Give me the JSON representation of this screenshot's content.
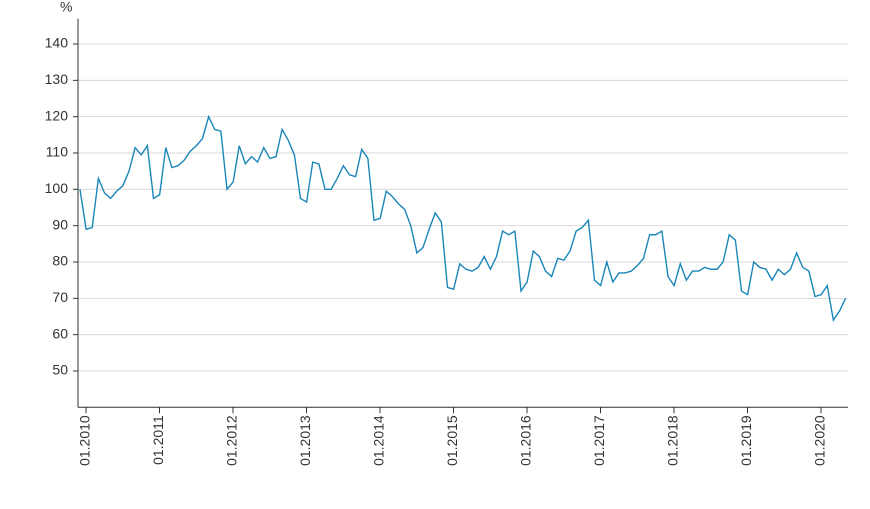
{
  "chart_data": {
    "type": "line",
    "y_label": "%",
    "categories": [
      "01.2010",
      null,
      null,
      null,
      null,
      null,
      null,
      null,
      null,
      null,
      null,
      null,
      "01.2011",
      null,
      null,
      null,
      null,
      null,
      null,
      null,
      null,
      null,
      null,
      null,
      "01.2012",
      null,
      null,
      null,
      null,
      null,
      null,
      null,
      null,
      null,
      null,
      null,
      "01.2013",
      null,
      null,
      null,
      null,
      null,
      null,
      null,
      null,
      null,
      null,
      null,
      "01.2014",
      null,
      null,
      null,
      null,
      null,
      null,
      null,
      null,
      null,
      null,
      null,
      "01.2015",
      null,
      null,
      null,
      null,
      null,
      null,
      null,
      null,
      null,
      null,
      null,
      "01.2016",
      null,
      null,
      null,
      null,
      null,
      null,
      null,
      null,
      null,
      null,
      null,
      "01.2017",
      null,
      null,
      null,
      null,
      null,
      null,
      null,
      null,
      null,
      null,
      null,
      "01.2018",
      null,
      null,
      null,
      null,
      null,
      null,
      null,
      null,
      null,
      null,
      null,
      "01.2019",
      null,
      null,
      null,
      null,
      null,
      null,
      null,
      null,
      null,
      null,
      null,
      "01.2020",
      null,
      null,
      null,
      null,
      null
    ],
    "series": [
      {
        "color": "#1a86b8",
        "values": [
          100,
          89,
          89.5,
          103,
          99,
          97.5,
          99.5,
          101,
          105,
          111.5,
          109.5,
          112,
          97.5,
          98.5,
          111.5,
          106,
          106.5,
          108,
          110.5,
          112,
          114,
          120,
          116.5,
          116,
          100,
          102,
          112,
          107,
          109,
          107.5,
          111.5,
          108.5,
          109,
          116.5,
          113.5,
          109.5,
          97.5,
          96.5,
          107.5,
          107,
          100,
          100,
          103,
          106.5,
          104,
          103.5,
          111,
          108.5,
          91.5,
          92,
          99.5,
          98,
          96,
          94.5,
          90,
          82.5,
          84,
          89,
          93.5,
          91,
          73,
          72.5,
          79.5,
          78,
          77.5,
          78.5,
          81.5,
          78,
          81.5,
          88.5,
          87.5,
          88.5,
          72,
          74.5,
          83,
          81.5,
          77.5,
          76,
          81,
          80.5,
          83,
          88.5,
          89.5,
          91.5,
          75,
          73.5,
          80,
          74.5,
          77,
          77,
          77.5,
          79,
          81,
          87.5,
          87.5,
          88.5,
          76,
          73.5,
          79.5,
          75,
          77.5,
          77.5,
          78.5,
          78,
          78,
          80,
          87.5,
          86,
          72,
          71,
          80,
          78.5,
          78,
          75,
          78,
          76.5,
          78,
          82.5,
          78.5,
          77.5,
          70.5,
          71,
          73.5,
          64,
          66.5,
          70
        ]
      }
    ],
    "ylim": [
      40,
      147
    ],
    "yticks": [
      50,
      60,
      70,
      80,
      90,
      100,
      110,
      120,
      130,
      140
    ],
    "grid": true
  }
}
